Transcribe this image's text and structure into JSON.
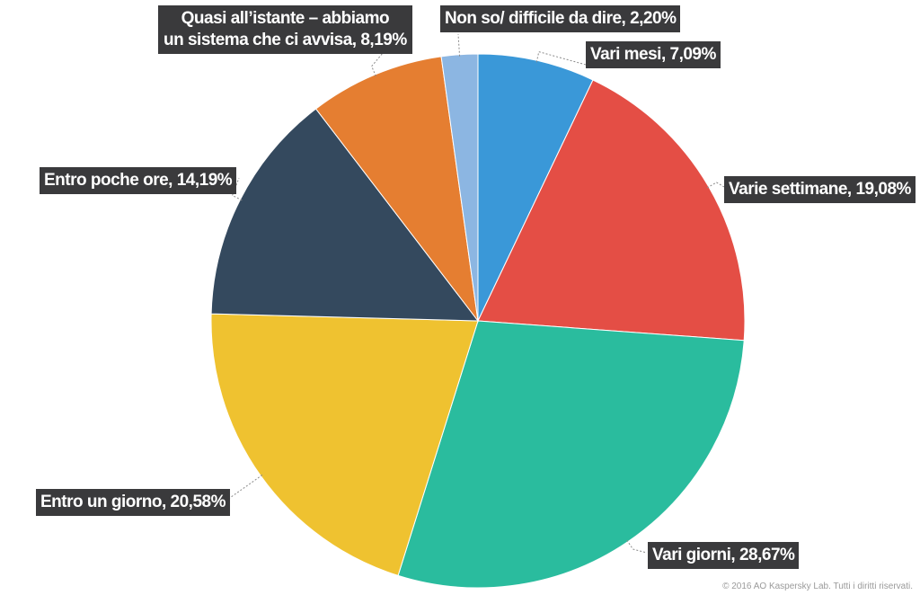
{
  "chart_data": {
    "type": "pie",
    "start_angle_deg": 0,
    "direction": "clockwise",
    "slices": [
      {
        "name": "Vari mesi",
        "value": 7.09,
        "label": "Vari mesi, 7,09%",
        "color": "#3A98D8"
      },
      {
        "name": "Varie settimane",
        "value": 19.08,
        "label": "Varie settimane, 19,08%",
        "color": "#E44E45"
      },
      {
        "name": "Vari giorni",
        "value": 28.67,
        "label": "Vari giorni, 28,67%",
        "color": "#2ABC9E"
      },
      {
        "name": "Entro un giorno",
        "value": 20.58,
        "label": "Entro un giorno, 20,58%",
        "color": "#EFC230"
      },
      {
        "name": "Entro poche ore",
        "value": 14.19,
        "label": "Entro poche ore, 14,19%",
        "color": "#34495E"
      },
      {
        "name": "Quasi all’istante – abbiamo un sistema che ci avvisa",
        "value": 8.19,
        "label_lines": [
          "Quasi all’istante – abbiamo",
          "un sistema che ci avvisa, 8,19%"
        ],
        "color": "#E57E31"
      },
      {
        "name": "Non so/ difficile da dire",
        "value": 2.2,
        "label": "Non so/ difficile da dire, 2,20%",
        "color": "#8CB6E2"
      }
    ]
  },
  "footer": {
    "copyright": "© 2016 AO Kaspersky Lab. Tutti i diritti riservati."
  }
}
